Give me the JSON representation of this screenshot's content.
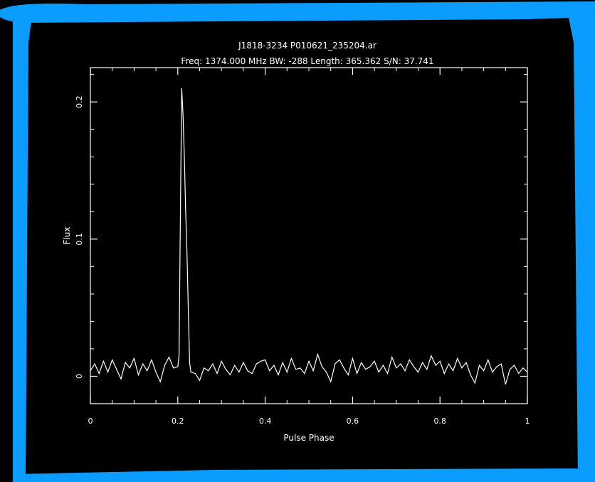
{
  "frame": {
    "border_color": "#0a9cff",
    "background_color": "#000000"
  },
  "chart_data": {
    "type": "line",
    "title": "J1818-3234 P010621_235204.ar",
    "subtitle": "Freq: 1374.000 MHz BW: -288 Length: 365.362 S/N: 37.741",
    "xlabel": "Pulse Phase",
    "ylabel": "Flux",
    "xlim": [
      0,
      1
    ],
    "ylim": [
      -0.02,
      0.225
    ],
    "xticks": [
      0,
      0.2,
      0.4,
      0.6,
      0.8,
      1
    ],
    "xtick_labels": [
      "0",
      "0.2",
      "0.4",
      "0.6",
      "0.8",
      "1"
    ],
    "yticks": [
      0,
      0.1,
      0.2
    ],
    "ytick_labels": [
      "0",
      "0.1",
      "0.2"
    ],
    "grid": false,
    "line_color": "#ffffff",
    "series": [
      {
        "x": [
          0,
          0.01,
          0.02,
          0.03,
          0.04,
          0.05,
          0.06,
          0.07,
          0.08,
          0.09,
          0.1,
          0.11,
          0.12,
          0.13,
          0.14,
          0.15,
          0.16,
          0.17,
          0.18,
          0.19,
          0.2,
          0.203,
          0.206,
          0.209,
          0.212,
          0.215,
          0.218,
          0.221,
          0.224,
          0.227,
          0.23,
          0.24,
          0.25,
          0.26,
          0.27,
          0.28,
          0.29,
          0.3,
          0.31,
          0.32,
          0.33,
          0.34,
          0.35,
          0.36,
          0.37,
          0.38,
          0.39,
          0.4,
          0.41,
          0.42,
          0.43,
          0.44,
          0.45,
          0.46,
          0.47,
          0.48,
          0.49,
          0.5,
          0.51,
          0.52,
          0.53,
          0.54,
          0.55,
          0.56,
          0.57,
          0.58,
          0.59,
          0.6,
          0.61,
          0.62,
          0.63,
          0.64,
          0.65,
          0.66,
          0.67,
          0.68,
          0.69,
          0.7,
          0.71,
          0.72,
          0.73,
          0.74,
          0.75,
          0.76,
          0.77,
          0.78,
          0.79,
          0.8,
          0.81,
          0.82,
          0.83,
          0.84,
          0.85,
          0.86,
          0.87,
          0.88,
          0.89,
          0.9,
          0.91,
          0.92,
          0.93,
          0.94,
          0.95,
          0.96,
          0.97,
          0.98,
          0.99,
          1
        ],
        "y": [
          0.004,
          0.009,
          0.002,
          0.011,
          0.003,
          0.012,
          0.005,
          -0.002,
          0.01,
          0.006,
          0.013,
          0.001,
          0.009,
          0.004,
          0.012,
          0.003,
          -0.004,
          0.008,
          0.014,
          0.006,
          0.007,
          0.015,
          0.12,
          0.21,
          0.19,
          0.16,
          0.12,
          0.09,
          0.05,
          0.01,
          0.003,
          0.002,
          -0.003,
          0.006,
          0.004,
          0.009,
          0.002,
          0.011,
          0.005,
          0.001,
          0.008,
          0.003,
          0.01,
          0.004,
          0.002,
          0.009,
          0.011,
          0.012,
          0.004,
          0.008,
          0.001,
          0.01,
          0.003,
          0.013,
          0.005,
          0.006,
          0.002,
          0.011,
          0.004,
          0.016,
          0.007,
          0.003,
          -0.004,
          0.009,
          0.012,
          0.006,
          0.001,
          0.013,
          0.002,
          0.01,
          0.005,
          0.007,
          0.011,
          0.003,
          0.008,
          0.002,
          0.014,
          0.006,
          0.009,
          0.004,
          0.012,
          0.007,
          0.003,
          0.01,
          0.005,
          0.015,
          0.008,
          0.011,
          0.002,
          0.009,
          0.004,
          0.013,
          0.006,
          0.01,
          0.001,
          -0.005,
          0.008,
          0.004,
          0.012,
          0.003,
          0.007,
          0.009,
          -0.006,
          0.005,
          0.008,
          0.002,
          0.006,
          0.003
        ]
      }
    ]
  }
}
